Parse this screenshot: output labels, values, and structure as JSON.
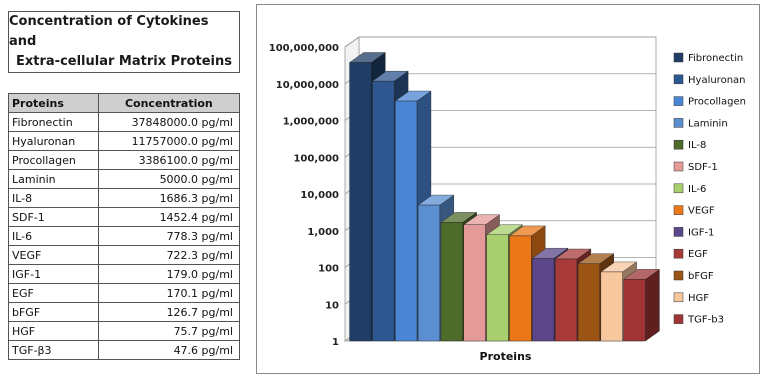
{
  "panel_title": [
    "Concentration of Cytokines and",
    "Extra-cellular Matrix Proteins"
  ],
  "table": {
    "headers": [
      "Proteins",
      "Concentration"
    ],
    "rows": [
      [
        "Fibronectin",
        "37848000.0 pg/ml"
      ],
      [
        "Hyaluronan",
        "11757000.0 pg/ml"
      ],
      [
        "Procollagen",
        "3386100.0 pg/ml"
      ],
      [
        "Laminin",
        "5000.0 pg/ml"
      ],
      [
        "IL-8",
        "1686.3 pg/ml"
      ],
      [
        "SDF-1",
        "1452.4 pg/ml"
      ],
      [
        "IL-6",
        "778.3 pg/ml"
      ],
      [
        "VEGF",
        "722.3 pg/ml"
      ],
      [
        "IGF-1",
        "179.0 pg/ml"
      ],
      [
        "EGF",
        "170.1 pg/ml"
      ],
      [
        "bFGF",
        "126.7 pg/ml"
      ],
      [
        "HGF",
        "75.7 pg/ml"
      ],
      [
        "TGF-β3",
        "47.6 pg/ml"
      ]
    ]
  },
  "chart_data": {
    "type": "bar",
    "style": "3d-column",
    "yscale": "log",
    "ylim": [
      1,
      100000000
    ],
    "yticks": [
      "1",
      "10",
      "100",
      "1,000",
      "10,000",
      "100,000",
      "1,000,000",
      "10,000,000",
      "100,000,000"
    ],
    "xlabel": "Proteins",
    "ylabel": "",
    "grid": true,
    "legend_position": "right",
    "series": [
      {
        "name": "Fibronectin",
        "value": 37848000.0,
        "color": "#1f3d66"
      },
      {
        "name": "Hyaluronan",
        "value": 11757000.0,
        "color": "#2e5690"
      },
      {
        "name": "Procollagen",
        "value": 3386100.0,
        "color": "#4a86d4"
      },
      {
        "name": "Laminin",
        "value": 5000.0,
        "color": "#5b8fd1"
      },
      {
        "name": "IL-8",
        "value": 1686.3,
        "color": "#4e6b2a"
      },
      {
        "name": "SDF-1",
        "value": 1452.4,
        "color": "#e59a9a"
      },
      {
        "name": "IL-6",
        "value": 778.3,
        "color": "#a9cf6e"
      },
      {
        "name": "VEGF",
        "value": 722.3,
        "color": "#ea7818"
      },
      {
        "name": "IGF-1",
        "value": 179.0,
        "color": "#5b4789"
      },
      {
        "name": "EGF",
        "value": 170.1,
        "color": "#a83a3a"
      },
      {
        "name": "bFGF",
        "value": 126.7,
        "color": "#9b5414"
      },
      {
        "name": "HGF",
        "value": 75.7,
        "color": "#f7c79e"
      },
      {
        "name": "TGF-b3",
        "value": 47.6,
        "color": "#9e3434"
      }
    ]
  }
}
